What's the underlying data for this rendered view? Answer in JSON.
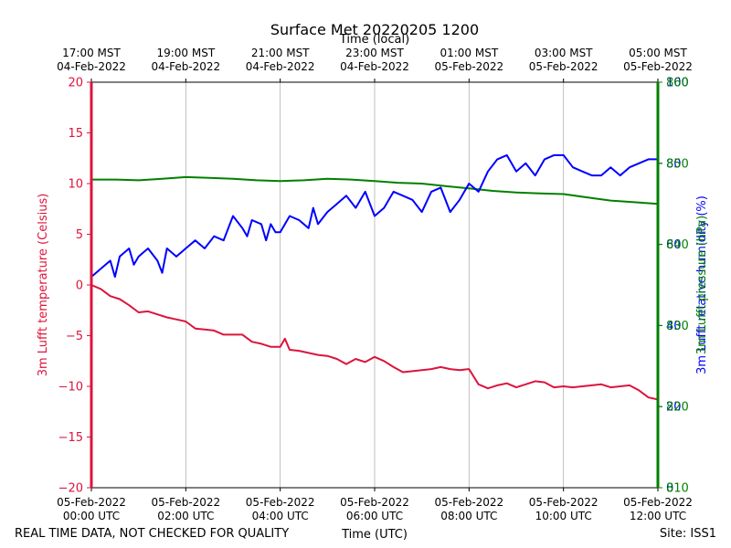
{
  "chart_data": {
    "type": "line",
    "title": "Surface Met 20220205 1200",
    "top_axis_title": "Time (local)",
    "bottom_axis_title": "Time (UTC)",
    "left_axis_label": "3m Lufft temperature (Celsius)",
    "right_axis_label_overlap": "3m Lufft relative humidity (%)",
    "right_axis_label_main": "3m Lufft pressure (hPa)",
    "footer_left": "REAL TIME DATA, NOT CHECKED FOR QUALITY",
    "footer_right": "Site: ISS1",
    "grid": "vertical",
    "x_range_hours_utc": [
      0,
      12
    ],
    "top_ticks": [
      {
        "hour": 0,
        "line1": "17:00 MST",
        "line2": "04-Feb-2022"
      },
      {
        "hour": 2,
        "line1": "19:00 MST",
        "line2": "04-Feb-2022"
      },
      {
        "hour": 4,
        "line1": "21:00 MST",
        "line2": "04-Feb-2022"
      },
      {
        "hour": 6,
        "line1": "23:00 MST",
        "line2": "04-Feb-2022"
      },
      {
        "hour": 8,
        "line1": "01:00 MST",
        "line2": "05-Feb-2022"
      },
      {
        "hour": 10,
        "line1": "03:00 MST",
        "line2": "05-Feb-2022"
      },
      {
        "hour": 12,
        "line1": "05:00 MST",
        "line2": "05-Feb-2022"
      }
    ],
    "bottom_ticks": [
      {
        "hour": 0,
        "line1": "05-Feb-2022",
        "line2": "00:00 UTC"
      },
      {
        "hour": 2,
        "line1": "05-Feb-2022",
        "line2": "02:00 UTC"
      },
      {
        "hour": 4,
        "line1": "05-Feb-2022",
        "line2": "04:00 UTC"
      },
      {
        "hour": 6,
        "line1": "05-Feb-2022",
        "line2": "06:00 UTC"
      },
      {
        "hour": 8,
        "line1": "05-Feb-2022",
        "line2": "08:00 UTC"
      },
      {
        "hour": 10,
        "line1": "05-Feb-2022",
        "line2": "10:00 UTC"
      },
      {
        "hour": 12,
        "line1": "05-Feb-2022",
        "line2": "12:00 UTC"
      }
    ],
    "temp_axis": {
      "ylim": [
        -20,
        20
      ],
      "ticks": [
        -20,
        -15,
        -10,
        -5,
        0,
        5,
        10,
        15,
        20
      ],
      "color": "#dc143c"
    },
    "rh_axis": {
      "ylim": [
        0,
        100
      ],
      "ticks": [
        0,
        20,
        40,
        60,
        80,
        100
      ],
      "color": "#0000ff"
    },
    "pressure_axis": {
      "ylim": [
        810,
        860
      ],
      "ticks": [
        810,
        820,
        830,
        840,
        850,
        860
      ],
      "tick_labels": [
        "810",
        "820",
        "830",
        "840",
        "850",
        "860"
      ],
      "color": "#008000"
    },
    "series": [
      {
        "key": "temperature",
        "axis": "temp",
        "color": "#dc143c",
        "x": [
          0,
          0.2,
          0.4,
          0.6,
          0.8,
          1.0,
          1.2,
          1.4,
          1.6,
          1.8,
          2.0,
          2.2,
          2.4,
          2.6,
          2.8,
          3.0,
          3.2,
          3.4,
          3.6,
          3.8,
          4.0,
          4.1,
          4.2,
          4.4,
          4.6,
          4.8,
          5.0,
          5.2,
          5.4,
          5.6,
          5.8,
          6.0,
          6.2,
          6.4,
          6.6,
          6.8,
          7.0,
          7.2,
          7.4,
          7.6,
          7.8,
          8.0,
          8.2,
          8.4,
          8.6,
          8.8,
          9.0,
          9.2,
          9.4,
          9.6,
          9.8,
          10.0,
          10.2,
          10.4,
          10.6,
          10.8,
          11.0,
          11.2,
          11.4,
          11.6,
          11.8,
          12.0
        ],
        "values": [
          0.0,
          -0.4,
          -1.1,
          -1.4,
          -2.0,
          -2.7,
          -2.6,
          -2.9,
          -3.2,
          -3.4,
          -3.6,
          -4.3,
          -4.4,
          -4.5,
          -4.9,
          -4.9,
          -4.9,
          -5.6,
          -5.8,
          -6.1,
          -6.1,
          -5.3,
          -6.4,
          -6.5,
          -6.7,
          -6.9,
          -7.0,
          -7.3,
          -7.8,
          -7.3,
          -7.6,
          -7.1,
          -7.5,
          -8.1,
          -8.6,
          -8.5,
          -8.4,
          -8.3,
          -8.1,
          -8.3,
          -8.4,
          -8.3,
          -9.8,
          -10.2,
          -9.9,
          -9.7,
          -10.1,
          -9.8,
          -9.5,
          -9.6,
          -10.1,
          -10.0,
          -10.1,
          -10.0,
          -9.9,
          -9.8,
          -10.1,
          -10.0,
          -9.9,
          -10.4,
          -11.1,
          -11.3
        ]
      },
      {
        "key": "relative_humidity",
        "axis": "rh",
        "color": "#0000ff",
        "x": [
          0,
          0.2,
          0.4,
          0.5,
          0.6,
          0.8,
          0.9,
          1.0,
          1.2,
          1.4,
          1.5,
          1.6,
          1.8,
          2.0,
          2.2,
          2.4,
          2.6,
          2.8,
          3.0,
          3.2,
          3.3,
          3.4,
          3.6,
          3.7,
          3.8,
          3.9,
          4.0,
          4.2,
          4.4,
          4.6,
          4.7,
          4.8,
          5.0,
          5.2,
          5.4,
          5.6,
          5.8,
          6.0,
          6.2,
          6.4,
          6.6,
          6.8,
          7.0,
          7.2,
          7.4,
          7.6,
          7.8,
          8.0,
          8.2,
          8.4,
          8.6,
          8.8,
          9.0,
          9.2,
          9.4,
          9.6,
          9.8,
          10.0,
          10.2,
          10.4,
          10.6,
          10.8,
          11.0,
          11.2,
          11.4,
          11.6,
          11.8,
          12.0
        ],
        "values": [
          52,
          54,
          56,
          52,
          57,
          59,
          55,
          57,
          59,
          56,
          53,
          59,
          57,
          59,
          61,
          59,
          62,
          61,
          67,
          64,
          62,
          66,
          65,
          61,
          65,
          63,
          63,
          67,
          66,
          64,
          69,
          65,
          68,
          70,
          72,
          69,
          73,
          67,
          69,
          73,
          72,
          71,
          68,
          73,
          74,
          68,
          71,
          75,
          73,
          78,
          81,
          82,
          78,
          80,
          77,
          81,
          82,
          82,
          79,
          78,
          77,
          77,
          79,
          77,
          79,
          80,
          81,
          81
        ]
      },
      {
        "key": "pressure",
        "axis": "pressure",
        "color": "#008000",
        "x": [
          0,
          0.5,
          1.0,
          1.5,
          2.0,
          2.5,
          3.0,
          3.5,
          4.0,
          4.5,
          5.0,
          5.5,
          6.0,
          6.5,
          7.0,
          7.5,
          8.0,
          8.5,
          9.0,
          9.5,
          10.0,
          10.5,
          11.0,
          11.5,
          12.0
        ],
        "values": [
          848.0,
          848.0,
          847.9,
          848.1,
          848.3,
          848.2,
          848.1,
          847.9,
          847.8,
          847.9,
          848.1,
          848.0,
          847.8,
          847.6,
          847.5,
          847.2,
          846.9,
          846.6,
          846.4,
          846.3,
          846.2,
          845.8,
          845.4,
          845.2,
          845.0
        ]
      }
    ]
  }
}
